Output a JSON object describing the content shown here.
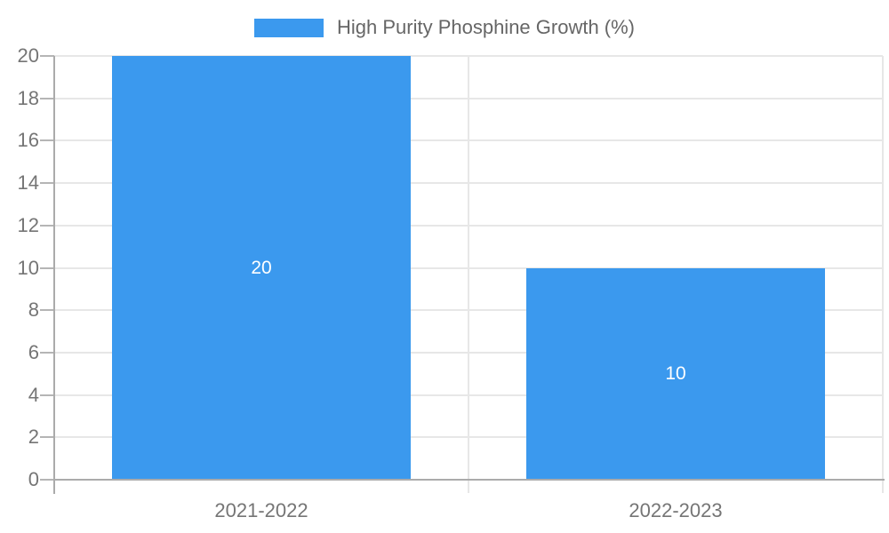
{
  "legend": {
    "label": "High Purity Phosphine Growth (%)"
  },
  "colors": {
    "bar": "#3b99ee",
    "bar_label": "#ffffff",
    "grid": "#e7e7e7",
    "axis": "#ababab",
    "tick": "#b5b5b5",
    "axis_label": "#757575",
    "legend_text": "#666666",
    "background": "#ffffff"
  },
  "chart_data": {
    "type": "bar",
    "title": "",
    "categories": [
      "2021-2022",
      "2022-2023"
    ],
    "values": [
      20,
      10
    ],
    "data_labels": [
      "20",
      "10"
    ],
    "series_name": "High Purity Phosphine Growth (%)",
    "xlabel": "",
    "ylabel": "",
    "ylim": [
      0,
      20
    ],
    "ytick_step": 2,
    "yticks": [
      0,
      2,
      4,
      6,
      8,
      10,
      12,
      14,
      16,
      18,
      20
    ],
    "grid": true,
    "legend_position": "top"
  }
}
